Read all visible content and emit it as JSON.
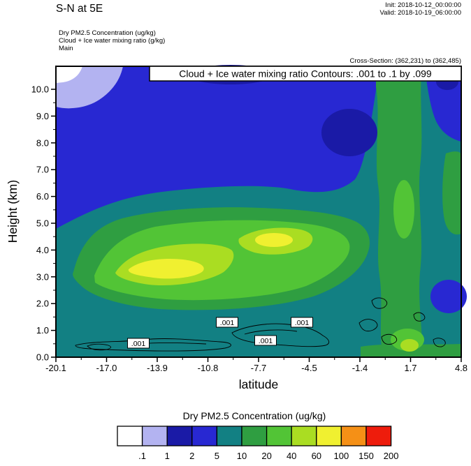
{
  "header": {
    "title": "S-N at 5E",
    "init_label": "Init: 2018-10-12_00:00:00",
    "valid_label": "Valid: 2018-10-19_06:00:00",
    "field_lines": [
      "Dry PM2.5 Concentration   (ug/kg)",
      "Cloud + Ice water mixing ratio  (g/kg)",
      "Main"
    ],
    "cross_section": "Cross-Section: (362,231) to (362,485)"
  },
  "plot": {
    "title": "Cloud + Ice water mixing ratio Contours: .001 to .1 by .099",
    "xlabel": "latitude",
    "ylabel": "Height (km)",
    "yticks": [
      "0.0",
      "1.0",
      "2.0",
      "3.0",
      "4.0",
      "5.0",
      "6.0",
      "7.0",
      "8.0",
      "9.0",
      "10.0"
    ],
    "xticks": [
      "-20.1",
      "-17.0",
      "-13.9",
      "-10.8",
      "-7.7",
      "-4.5",
      "-1.4",
      "1.7",
      "4.8"
    ],
    "contour_labels": [
      ".001",
      ".001",
      ".001",
      ".001"
    ]
  },
  "legend": {
    "title": "Dry PM2.5 Concentration  (ug/kg)",
    "tick_labels": [
      ".1",
      "1",
      "2",
      "5",
      "10",
      "20",
      "40",
      "60",
      "100",
      "150",
      "200"
    ],
    "colors": [
      "#ffffff",
      "#b3b3f1",
      "#1a1aa6",
      "#2828d2",
      "#128083",
      "#2f9e41",
      "#52c436",
      "#aadd22",
      "#f0f030",
      "#f59016",
      "#ee1c0c"
    ]
  },
  "chart_data": {
    "type": "heatmap",
    "title": "Cloud + Ice water mixing ratio Contours: .001 to .1 by .099",
    "xlabel": "latitude",
    "ylabel": "Height (km)",
    "x_ticks": [
      -20.1,
      -17.0,
      -13.9,
      -10.8,
      -7.7,
      -4.5,
      -1.4,
      1.7,
      4.8
    ],
    "x_range": [
      -20.1,
      4.8
    ],
    "y_range": [
      0,
      10.8
    ],
    "fill_variable": "Dry PM2.5 Concentration (ug/kg)",
    "fill_levels": [
      0.1,
      1,
      2,
      5,
      10,
      20,
      40,
      60,
      100,
      150,
      200
    ],
    "fill_colors": [
      "#ffffff",
      "#b3b3f1",
      "#1a1aa6",
      "#2828d2",
      "#128083",
      "#2f9e41",
      "#52c436",
      "#aadd22",
      "#f0f030",
      "#f59016",
      "#ee1c0c"
    ],
    "line_variable": "Cloud + Ice water mixing ratio (g/kg)",
    "line_levels": [
      0.001,
      0.1
    ],
    "line_interval": 0.099,
    "line_label_points": [
      {
        "lat": -15.0,
        "height_km": 0.55
      },
      {
        "lat": -9.6,
        "height_km": 1.3
      },
      {
        "lat": -7.2,
        "height_km": 0.6
      },
      {
        "lat": -5.0,
        "height_km": 1.3
      }
    ],
    "features": [
      {
        "range_ugkg": "60-100",
        "where": "yellow cores near lat -16 to -11 at 2.9-3.6 km and lat -9 to -6.5 at 4.0-4.6 km"
      },
      {
        "range_ugkg": "40-60",
        "where": "yellow-green band lat -17.5 to -5.5 between 2.5 and 4.5 km"
      },
      {
        "range_ugkg": "20-40",
        "where": "broad bright-green plume lat -19 to -2 between 2 and 5.5 km"
      },
      {
        "range_ugkg": "10-20",
        "where": "outer green plume up to 6 km; vertical column near lat -0.5 to 2.5 reaching plot top; shallow layer below 1 km at right"
      },
      {
        "range_ugkg": "5-10",
        "where": "teal envelope around plume and boundary layer across the section; right-hand column to 10+ km"
      },
      {
        "range_ugkg": "2-5",
        "where": "deep-blue free-troposphere background over the upper half of the section"
      },
      {
        "range_ugkg": "0.1-2",
        "where": "lavender/white minimum pocket near lat -20 to -18 above 9.5 km (top-left corner), darker navy pockets near plot top"
      }
    ]
  }
}
